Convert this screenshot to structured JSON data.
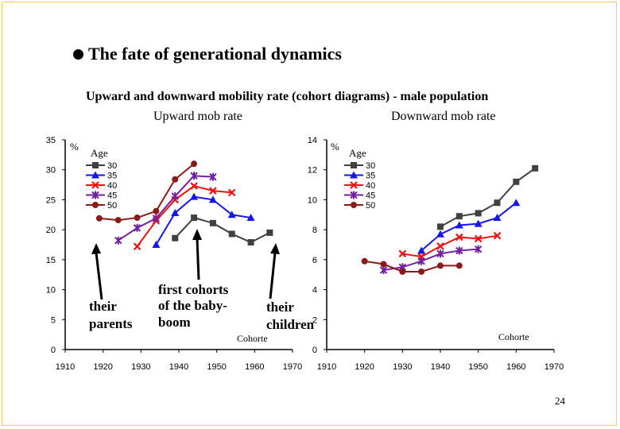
{
  "slide": {
    "title": "The fate of generational dynamics",
    "subtitle": "Upward and downward mobility rate (cohort diagrams)  - male population",
    "page_number": "24"
  },
  "annotations": {
    "parents_line1": "their",
    "parents_line2": "parents",
    "first_line1": "first cohorts",
    "first_line2": "of the baby-",
    "first_line3": "boom",
    "children_line1": "their",
    "children_line2": "children"
  },
  "chart_data": [
    {
      "type": "line",
      "title": "Upward mob rate",
      "xlabel": "Cohorte",
      "ylabel": "%",
      "legend_title": "Age",
      "legend_placement": "top-left",
      "grid": false,
      "xlim": [
        1910,
        1970
      ],
      "ylim": [
        0,
        35
      ],
      "xticks": [
        "1910",
        "1920",
        "1930",
        "1940",
        "1950",
        "1960",
        "1970"
      ],
      "yticks": [
        "0",
        "5",
        "10",
        "15",
        "20",
        "25",
        "30",
        "35"
      ],
      "series": [
        {
          "name": "30",
          "color": "#404040",
          "marker": "square",
          "x": [
            1939,
            1944,
            1949,
            1954,
            1959,
            1964
          ],
          "y": [
            18.6,
            22.0,
            21.1,
            19.3,
            17.9,
            19.5
          ]
        },
        {
          "name": "35",
          "color": "#1515ee",
          "marker": "triangle",
          "x": [
            1934,
            1939,
            1944,
            1949,
            1954,
            1959
          ],
          "y": [
            17.5,
            22.8,
            25.5,
            25.0,
            22.5,
            22.0
          ]
        },
        {
          "name": "40",
          "color": "#f01010",
          "marker": "x",
          "x": [
            1929,
            1934,
            1939,
            1944,
            1949,
            1954
          ],
          "y": [
            17.2,
            21.5,
            25.0,
            27.3,
            26.5,
            26.2
          ]
        },
        {
          "name": "45",
          "color": "#7020a0",
          "marker": "star",
          "x": [
            1924,
            1929,
            1934,
            1939,
            1944,
            1949
          ],
          "y": [
            18.2,
            20.3,
            21.9,
            25.6,
            29.0,
            28.8
          ]
        },
        {
          "name": "50",
          "color": "#8b1a1a",
          "marker": "circle",
          "x": [
            1919,
            1924,
            1929,
            1934,
            1939,
            1944
          ],
          "y": [
            21.9,
            21.6,
            22.0,
            23.1,
            28.4,
            31.0
          ]
        }
      ]
    },
    {
      "type": "line",
      "title": "Downward mob rate",
      "xlabel": "Cohorte",
      "ylabel": "%",
      "legend_title": "Age",
      "legend_placement": "top-left",
      "grid": false,
      "xlim": [
        1910,
        1970
      ],
      "ylim": [
        0,
        14
      ],
      "xticks": [
        "1910",
        "1920",
        "1930",
        "1940",
        "1950",
        "1960",
        "1970"
      ],
      "yticks": [
        "0",
        "2",
        "4",
        "6",
        "8",
        "10",
        "12",
        "14"
      ],
      "series": [
        {
          "name": "30",
          "color": "#404040",
          "marker": "square",
          "x": [
            1940,
            1945,
            1950,
            1955,
            1960,
            1965
          ],
          "y": [
            8.2,
            8.9,
            9.1,
            9.8,
            11.2,
            12.1
          ]
        },
        {
          "name": "35",
          "color": "#1515ee",
          "marker": "triangle",
          "x": [
            1935,
            1940,
            1945,
            1950,
            1955,
            1960
          ],
          "y": [
            6.6,
            7.7,
            8.3,
            8.4,
            8.8,
            9.8
          ]
        },
        {
          "name": "40",
          "color": "#f01010",
          "marker": "x",
          "x": [
            1930,
            1935,
            1940,
            1945,
            1950,
            1955
          ],
          "y": [
            6.4,
            6.2,
            6.9,
            7.5,
            7.4,
            7.6
          ]
        },
        {
          "name": "45",
          "color": "#7020a0",
          "marker": "star",
          "x": [
            1925,
            1930,
            1935,
            1940,
            1945,
            1950
          ],
          "y": [
            5.3,
            5.5,
            5.9,
            6.4,
            6.6,
            6.7
          ]
        },
        {
          "name": "50",
          "color": "#8b1a1a",
          "marker": "circle",
          "x": [
            1920,
            1925,
            1930,
            1935,
            1940,
            1945
          ],
          "y": [
            5.9,
            5.7,
            5.2,
            5.2,
            5.6,
            5.6
          ]
        }
      ]
    }
  ]
}
